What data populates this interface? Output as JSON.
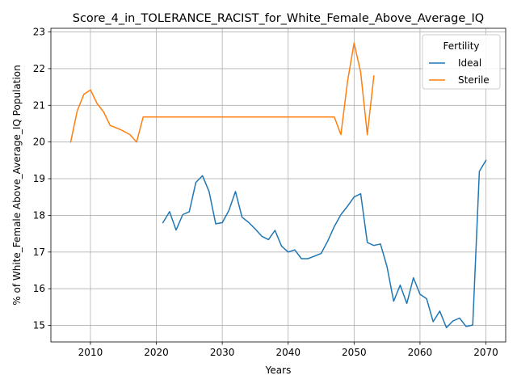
{
  "chart_data": {
    "type": "line",
    "title": "Score_4_in_TOLERANCE_RACIST_for_White_Female_Above_Average_IQ",
    "xlabel": "Years",
    "ylabel": "% of White_Female Above_Average_IQ Population",
    "xlim": [
      2004,
      2073
    ],
    "ylim": [
      14.55,
      23.1
    ],
    "xticks": [
      2010,
      2020,
      2030,
      2040,
      2050,
      2060,
      2070
    ],
    "yticks": [
      15,
      16,
      17,
      18,
      19,
      20,
      21,
      22,
      23
    ],
    "grid": true,
    "legend": {
      "title": "Fertility",
      "placement": "top-right"
    },
    "series": [
      {
        "name": "Ideal",
        "color": "#1f77b4",
        "x": [
          2021,
          2022,
          2023,
          2024,
          2025,
          2026,
          2027,
          2028,
          2029,
          2030,
          2031,
          2032,
          2033,
          2034,
          2035,
          2036,
          2037,
          2038,
          2039,
          2040,
          2041,
          2042,
          2043,
          2044,
          2045,
          2046,
          2047,
          2048,
          2049,
          2050,
          2051,
          2052,
          2053,
          2054,
          2055,
          2056,
          2057,
          2058,
          2059,
          2060,
          2061,
          2062,
          2063,
          2064,
          2065,
          2066,
          2067,
          2068,
          2069,
          2070
        ],
        "values": [
          17.8,
          18.1,
          17.6,
          18.02,
          18.1,
          18.9,
          19.08,
          18.65,
          17.77,
          17.8,
          18.13,
          18.65,
          17.95,
          17.81,
          17.63,
          17.43,
          17.34,
          17.59,
          17.16,
          17.0,
          17.06,
          16.82,
          16.82,
          16.89,
          16.96,
          17.3,
          17.7,
          18.02,
          18.25,
          18.5,
          18.59,
          17.26,
          17.18,
          17.22,
          16.6,
          15.66,
          16.1,
          15.6,
          16.3,
          15.85,
          15.73,
          15.1,
          15.39,
          14.94,
          15.12,
          15.2,
          14.97,
          15.01,
          19.2,
          19.5
        ]
      },
      {
        "name": "Sterile",
        "color": "#ff7f0e",
        "x": [
          2007,
          2008,
          2009,
          2010,
          2011,
          2012,
          2013,
          2014,
          2015,
          2016,
          2017,
          2018,
          2019,
          2020,
          2021,
          2022,
          2023,
          2024,
          2025,
          2026,
          2027,
          2028,
          2029,
          2030,
          2031,
          2032,
          2033,
          2034,
          2035,
          2036,
          2037,
          2038,
          2039,
          2040,
          2041,
          2042,
          2043,
          2044,
          2045,
          2046,
          2047,
          2048,
          2049,
          2050,
          2051,
          2052,
          2053
        ],
        "values": [
          20.0,
          20.85,
          21.3,
          21.42,
          21.05,
          20.82,
          20.45,
          20.38,
          20.3,
          20.2,
          20.0,
          20.68,
          20.68,
          20.68,
          20.68,
          20.68,
          20.68,
          20.68,
          20.68,
          20.68,
          20.68,
          20.68,
          20.68,
          20.68,
          20.68,
          20.68,
          20.68,
          20.68,
          20.68,
          20.68,
          20.68,
          20.68,
          20.68,
          20.68,
          20.68,
          20.68,
          20.68,
          20.68,
          20.68,
          20.68,
          20.68,
          20.2,
          21.65,
          22.7,
          21.9,
          20.2,
          21.8
        ]
      }
    ]
  }
}
